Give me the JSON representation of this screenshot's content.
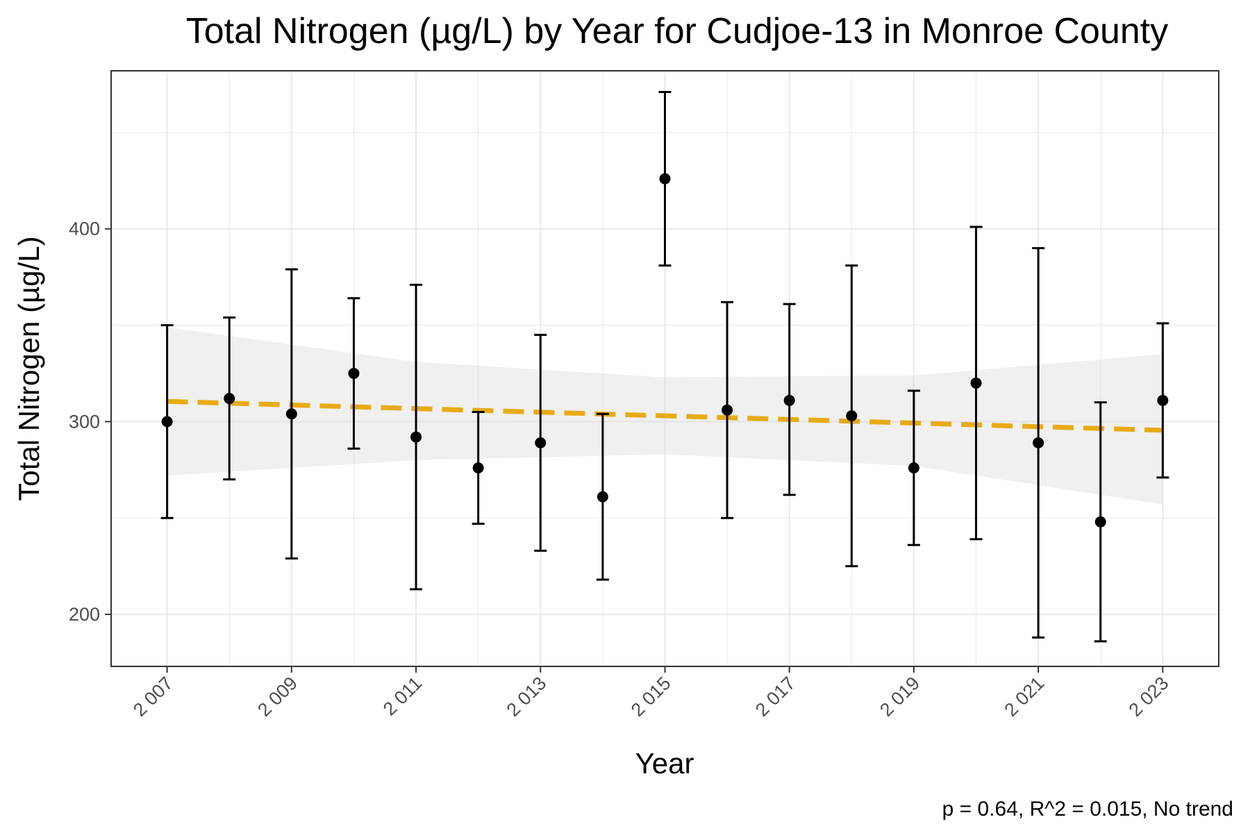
{
  "chart_data": {
    "type": "scatter",
    "title": "Total Nitrogen (µg/L) by Year for Cudjoe-13 in Monroe County",
    "xlabel": "Year",
    "ylabel": "Total Nitrogen (µg/L)",
    "caption": "p = 0.64, R^2 = 0.015, No trend",
    "xlim": [
      2006.1,
      2023.9
    ],
    "ylim": [
      173,
      482
    ],
    "x_ticks": [
      2007,
      2009,
      2011,
      2013,
      2015,
      2017,
      2019,
      2021,
      2023
    ],
    "x_tick_labels": [
      "2 007",
      "2 009",
      "2 011",
      "2 013",
      "2 015",
      "2 017",
      "2 019",
      "2 021",
      "2 023"
    ],
    "y_ticks": [
      200,
      300,
      400
    ],
    "y_tick_labels": [
      "200",
      "300",
      "400"
    ],
    "grid": true,
    "series": [
      {
        "values": [
          {
            "x": 2007,
            "y": 300,
            "lower": 250,
            "upper": 350
          },
          {
            "x": 2008,
            "y": 312,
            "lower": 270,
            "upper": 354
          },
          {
            "x": 2009,
            "y": 304,
            "lower": 229,
            "upper": 379
          },
          {
            "x": 2010,
            "y": 325,
            "lower": 286,
            "upper": 364
          },
          {
            "x": 2011,
            "y": 292,
            "lower": 213,
            "upper": 371
          },
          {
            "x": 2012,
            "y": 276,
            "lower": 247,
            "upper": 305
          },
          {
            "x": 2013,
            "y": 289,
            "lower": 233,
            "upper": 345
          },
          {
            "x": 2014,
            "y": 261,
            "lower": 218,
            "upper": 304
          },
          {
            "x": 2015,
            "y": 426,
            "lower": 381,
            "upper": 471
          },
          {
            "x": 2016,
            "y": 306,
            "lower": 250,
            "upper": 362
          },
          {
            "x": 2017,
            "y": 311,
            "lower": 262,
            "upper": 361
          },
          {
            "x": 2018,
            "y": 303,
            "lower": 225,
            "upper": 381
          },
          {
            "x": 2019,
            "y": 276,
            "lower": 236,
            "upper": 316
          },
          {
            "x": 2020,
            "y": 320,
            "lower": 239,
            "upper": 401
          },
          {
            "x": 2021,
            "y": 289,
            "lower": 188,
            "upper": 390
          },
          {
            "x": 2022,
            "y": 248,
            "lower": 186,
            "upper": 310
          },
          {
            "x": 2023,
            "y": 311,
            "lower": 271,
            "upper": 351
          }
        ]
      }
    ],
    "trend": {
      "style": "dashed",
      "x": [
        2007,
        2023
      ],
      "y": [
        310.5,
        295.5
      ],
      "band_x": [
        2007,
        2011,
        2015,
        2019,
        2023
      ],
      "band_lower": [
        272,
        280,
        283,
        277,
        257
      ],
      "band_upper": [
        349,
        331,
        323,
        324,
        335
      ]
    },
    "colors": {
      "points": "#000000",
      "errorbars": "#000000",
      "trend": "#E6A500",
      "band": "#D9D9D9",
      "grid": "#EBEBEB",
      "panel_border": "#333333"
    }
  }
}
